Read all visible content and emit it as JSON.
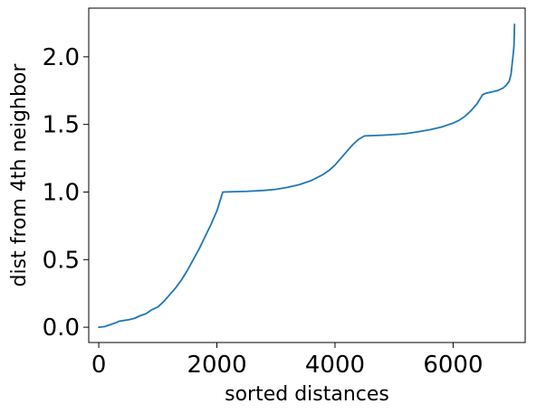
{
  "chart_data": {
    "type": "line",
    "title": "",
    "xlabel": "sorted distances",
    "ylabel": "dist from 4th neighbor",
    "xlim": [
      -170,
      7220
    ],
    "ylim": [
      -0.113,
      2.36
    ],
    "xticks": [
      0,
      2000,
      4000,
      6000
    ],
    "xtick_labels": [
      "0",
      "2000",
      "4000",
      "6000"
    ],
    "yticks": [
      0.0,
      0.5,
      1.0,
      1.5,
      2.0
    ],
    "ytick_labels": [
      "0.0",
      "0.5",
      "1.0",
      "1.5",
      "2.0"
    ],
    "grid": false,
    "legend": "none",
    "line_color": "#1f77b4",
    "series": [
      {
        "x": [
          0,
          100,
          200,
          300,
          350,
          500,
          600,
          700,
          800,
          900,
          1000,
          1100,
          1200,
          1300,
          1400,
          1500,
          1600,
          1700,
          1800,
          1900,
          2000,
          2050,
          2100,
          2200,
          2500,
          2800,
          3000,
          3200,
          3400,
          3600,
          3800,
          3900,
          4000,
          4100,
          4200,
          4300,
          4400,
          4480,
          4500,
          4800,
          5000,
          5200,
          5400,
          5600,
          5800,
          6000,
          6100,
          6200,
          6300,
          6400,
          6500,
          6550,
          6650,
          6750,
          6850,
          6900,
          6950,
          6980,
          7000,
          7020,
          7030,
          7035,
          7040
        ],
        "y": [
          0.0,
          0.005,
          0.02,
          0.035,
          0.045,
          0.055,
          0.065,
          0.085,
          0.1,
          0.13,
          0.15,
          0.19,
          0.24,
          0.29,
          0.35,
          0.42,
          0.5,
          0.58,
          0.67,
          0.76,
          0.86,
          0.93,
          1.0,
          1.001,
          1.005,
          1.012,
          1.02,
          1.035,
          1.055,
          1.085,
          1.13,
          1.16,
          1.2,
          1.25,
          1.3,
          1.35,
          1.39,
          1.41,
          1.415,
          1.42,
          1.425,
          1.432,
          1.445,
          1.46,
          1.48,
          1.51,
          1.53,
          1.56,
          1.6,
          1.65,
          1.72,
          1.73,
          1.74,
          1.75,
          1.77,
          1.79,
          1.82,
          1.87,
          1.95,
          2.03,
          2.08,
          2.15,
          2.24
        ]
      }
    ]
  }
}
